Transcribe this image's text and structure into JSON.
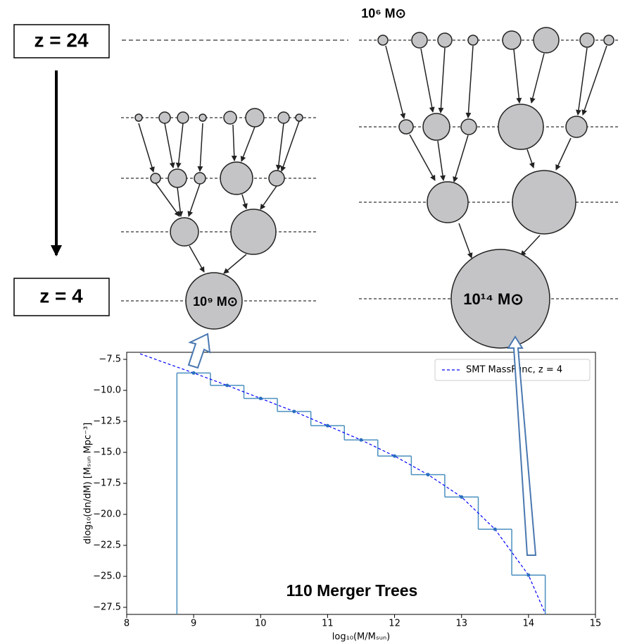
{
  "diagram": {
    "labels": {
      "z_top": "z = 24",
      "z_bottom": "z = 4",
      "mass_small": "10⁶ M⊙",
      "mass_left": "10⁹ M⊙",
      "mass_right": "10¹⁴ M⊙"
    }
  },
  "chart_data": {
    "type": "histogram",
    "bins": [
      8.75,
      9.25,
      9.75,
      10.25,
      10.75,
      11.25,
      11.75,
      12.25,
      12.75,
      13.25,
      13.75,
      14.25
    ],
    "values": [
      -8.6,
      -9.6,
      -10.65,
      -11.7,
      -12.85,
      -14.0,
      -15.3,
      -16.8,
      -18.6,
      -21.2,
      -24.9
    ],
    "color": "#4a8fbf",
    "series": [
      {
        "name": "SMT MassFunc, z = 4",
        "color": "#0000ff",
        "linestyle": "dashed",
        "x": [
          8.2,
          9,
          9.5,
          10,
          10.5,
          11,
          11.5,
          12,
          12.5,
          13,
          13.5,
          14,
          14.25
        ],
        "values": [
          -7.05,
          -8.6,
          -9.6,
          -10.65,
          -11.7,
          -12.85,
          -14.0,
          -15.3,
          -16.8,
          -18.6,
          -21.2,
          -24.9,
          -28.0
        ]
      }
    ],
    "xlim": [
      8,
      15
    ],
    "ylim": [
      -28.07,
      -6.93
    ],
    "xticks": [
      8,
      9,
      10,
      11,
      12,
      13,
      14,
      15
    ],
    "yticks": [
      {
        "value": -7.5,
        "label": "−7.5"
      },
      {
        "value": -10,
        "label": "−10.0"
      },
      {
        "value": -12.5,
        "label": "−12.5"
      },
      {
        "value": -15,
        "label": "−15.0"
      },
      {
        "value": -17.5,
        "label": "−17.5"
      },
      {
        "value": -20,
        "label": "−20.0"
      },
      {
        "value": -22.5,
        "label": "−22.5"
      },
      {
        "value": -25,
        "label": "−25.0"
      },
      {
        "value": -27.5,
        "label": "−27.5"
      }
    ],
    "xlabel": "log₁₀(M/Mₛᵤₙ)",
    "ylabel": "dlog₁₀(dn/dM) [Mₛᵤₙ Mpc⁻³]",
    "annotation": "110 Merger Trees",
    "legend": "upper right"
  }
}
